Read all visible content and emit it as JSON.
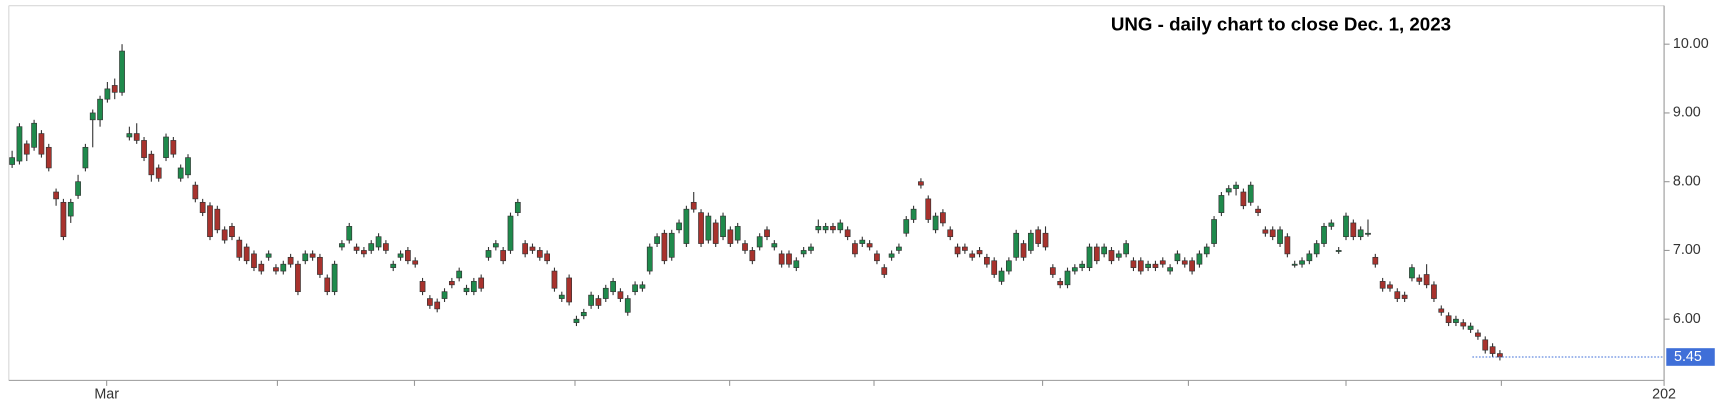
{
  "chart_data": {
    "type": "candlestick",
    "title": "UNG - daily chart to close Dec. 1, 2023",
    "ylim": [
      5.11,
      10.56
    ],
    "yticks": [
      {
        "value": 6,
        "label": "6.00"
      },
      {
        "value": 7,
        "label": "7.00"
      },
      {
        "value": 8,
        "label": "8.00"
      },
      {
        "value": 9,
        "label": "9.00"
      },
      {
        "value": 10,
        "label": "10.00"
      }
    ],
    "xlim": [
      -0.45,
      225.4
    ],
    "xticks": [
      {
        "value": 12.9,
        "label": "Mar"
      },
      {
        "value": 225.4,
        "label": "202"
      }
    ],
    "xminor": [
      36.2,
      54.9,
      76.8,
      97.9,
      117.6,
      140.6,
      160.5,
      182.0,
      203.2
    ],
    "up_color": "#1f8a4c",
    "down_color": "#a8322d",
    "last_label": "5.45",
    "last_color": "#3f6fd8",
    "ohlc": [
      [
        8.25,
        8.45,
        8.2,
        8.35
      ],
      [
        8.3,
        8.85,
        8.25,
        8.8
      ],
      [
        8.55,
        8.6,
        8.3,
        8.4
      ],
      [
        8.5,
        8.9,
        8.45,
        8.85
      ],
      [
        8.7,
        8.75,
        8.35,
        8.4
      ],
      [
        8.5,
        8.55,
        8.15,
        8.2
      ],
      [
        7.85,
        7.9,
        7.65,
        7.75
      ],
      [
        7.7,
        7.75,
        7.15,
        7.2
      ],
      [
        7.5,
        7.75,
        7.4,
        7.7
      ],
      [
        7.8,
        8.1,
        7.75,
        8.0
      ],
      [
        8.2,
        8.55,
        8.15,
        8.5
      ],
      [
        8.9,
        9.05,
        8.5,
        9.0
      ],
      [
        8.9,
        9.25,
        8.8,
        9.2
      ],
      [
        9.2,
        9.45,
        9.15,
        9.35
      ],
      [
        9.4,
        9.5,
        9.2,
        9.3
      ],
      [
        9.3,
        10.0,
        9.25,
        9.9
      ],
      [
        8.65,
        8.8,
        8.6,
        8.7
      ],
      [
        8.7,
        8.85,
        8.55,
        8.6
      ],
      [
        8.6,
        8.65,
        8.3,
        8.35
      ],
      [
        8.4,
        8.45,
        8.0,
        8.1
      ],
      [
        8.2,
        8.25,
        8.0,
        8.05
      ],
      [
        8.35,
        8.7,
        8.3,
        8.65
      ],
      [
        8.6,
        8.65,
        8.35,
        8.4
      ],
      [
        8.05,
        8.25,
        8.0,
        8.2
      ],
      [
        8.1,
        8.4,
        8.05,
        8.35
      ],
      [
        7.95,
        8.0,
        7.7,
        7.75
      ],
      [
        7.7,
        7.75,
        7.5,
        7.55
      ],
      [
        7.65,
        7.7,
        7.15,
        7.2
      ],
      [
        7.6,
        7.65,
        7.25,
        7.3
      ],
      [
        7.3,
        7.35,
        7.1,
        7.15
      ],
      [
        7.35,
        7.4,
        7.15,
        7.2
      ],
      [
        7.15,
        7.2,
        6.85,
        6.9
      ],
      [
        7.05,
        7.1,
        6.8,
        6.85
      ],
      [
        6.95,
        7.0,
        6.7,
        6.75
      ],
      [
        6.8,
        6.85,
        6.65,
        6.7
      ],
      [
        6.9,
        7.0,
        6.85,
        6.95
      ],
      [
        6.75,
        6.8,
        6.65,
        6.7
      ],
      [
        6.7,
        6.85,
        6.65,
        6.8
      ],
      [
        6.9,
        6.95,
        6.75,
        6.8
      ],
      [
        6.8,
        6.85,
        6.35,
        6.4
      ],
      [
        6.85,
        7.0,
        6.8,
        6.95
      ],
      [
        6.95,
        7.0,
        6.85,
        6.9
      ],
      [
        6.9,
        6.95,
        6.6,
        6.65
      ],
      [
        6.6,
        6.65,
        6.35,
        6.4
      ],
      [
        6.4,
        6.85,
        6.35,
        6.8
      ],
      [
        7.05,
        7.15,
        7.0,
        7.1
      ],
      [
        7.15,
        7.4,
        7.1,
        7.35
      ],
      [
        7.05,
        7.1,
        6.95,
        7.0
      ],
      [
        7.0,
        7.05,
        6.9,
        6.95
      ],
      [
        7.0,
        7.15,
        6.95,
        7.1
      ],
      [
        7.05,
        7.25,
        7.0,
        7.2
      ],
      [
        7.1,
        7.15,
        6.95,
        7.0
      ],
      [
        6.75,
        6.85,
        6.7,
        6.8
      ],
      [
        6.9,
        7.0,
        6.85,
        6.95
      ],
      [
        7.0,
        7.05,
        6.8,
        6.85
      ],
      [
        6.85,
        6.9,
        6.75,
        6.8
      ],
      [
        6.55,
        6.6,
        6.35,
        6.4
      ],
      [
        6.3,
        6.35,
        6.15,
        6.2
      ],
      [
        6.25,
        6.3,
        6.1,
        6.15
      ],
      [
        6.3,
        6.45,
        6.25,
        6.4
      ],
      [
        6.55,
        6.6,
        6.45,
        6.5
      ],
      [
        6.6,
        6.75,
        6.55,
        6.7
      ],
      [
        6.4,
        6.5,
        6.35,
        6.45
      ],
      [
        6.4,
        6.6,
        6.35,
        6.55
      ],
      [
        6.6,
        6.65,
        6.4,
        6.45
      ],
      [
        6.9,
        7.05,
        6.85,
        7.0
      ],
      [
        7.05,
        7.15,
        7.0,
        7.1
      ],
      [
        7.0,
        7.05,
        6.8,
        6.85
      ],
      [
        7.0,
        7.55,
        6.95,
        7.5
      ],
      [
        7.55,
        7.75,
        7.5,
        7.7
      ],
      [
        7.1,
        7.15,
        6.9,
        6.95
      ],
      [
        7.05,
        7.1,
        6.95,
        7.0
      ],
      [
        7.0,
        7.05,
        6.85,
        6.9
      ],
      [
        6.95,
        7.0,
        6.8,
        6.85
      ],
      [
        6.7,
        6.75,
        6.4,
        6.45
      ],
      [
        6.3,
        6.4,
        6.25,
        6.35
      ],
      [
        6.6,
        6.65,
        6.2,
        6.25
      ],
      [
        5.95,
        6.05,
        5.9,
        6.0
      ],
      [
        6.05,
        6.15,
        6.0,
        6.1
      ],
      [
        6.2,
        6.4,
        6.15,
        6.35
      ],
      [
        6.3,
        6.35,
        6.15,
        6.2
      ],
      [
        6.3,
        6.5,
        6.25,
        6.45
      ],
      [
        6.4,
        6.6,
        6.35,
        6.55
      ],
      [
        6.4,
        6.45,
        6.25,
        6.3
      ],
      [
        6.1,
        6.35,
        6.05,
        6.3
      ],
      [
        6.4,
        6.55,
        6.35,
        6.5
      ],
      [
        6.45,
        6.55,
        6.4,
        6.5
      ],
      [
        6.7,
        7.1,
        6.65,
        7.05
      ],
      [
        7.1,
        7.25,
        7.05,
        7.2
      ],
      [
        7.25,
        7.3,
        6.8,
        6.85
      ],
      [
        6.9,
        7.3,
        6.85,
        7.25
      ],
      [
        7.3,
        7.45,
        7.25,
        7.4
      ],
      [
        7.1,
        7.65,
        7.05,
        7.6
      ],
      [
        7.7,
        7.85,
        7.55,
        7.6
      ],
      [
        7.55,
        7.6,
        7.05,
        7.1
      ],
      [
        7.15,
        7.55,
        7.1,
        7.5
      ],
      [
        7.4,
        7.45,
        7.05,
        7.1
      ],
      [
        7.2,
        7.55,
        7.15,
        7.5
      ],
      [
        7.3,
        7.35,
        7.05,
        7.1
      ],
      [
        7.15,
        7.4,
        7.1,
        7.35
      ],
      [
        7.1,
        7.15,
        6.95,
        7.0
      ],
      [
        7.0,
        7.05,
        6.8,
        6.85
      ],
      [
        7.05,
        7.25,
        7.0,
        7.2
      ],
      [
        7.3,
        7.35,
        7.15,
        7.2
      ],
      [
        7.05,
        7.15,
        7.0,
        7.1
      ],
      [
        6.95,
        7.0,
        6.75,
        6.8
      ],
      [
        6.95,
        7.0,
        6.75,
        6.8
      ],
      [
        6.75,
        6.9,
        6.7,
        6.85
      ],
      [
        6.95,
        7.05,
        6.9,
        7.0
      ],
      [
        7.0,
        7.1,
        6.95,
        7.05
      ],
      [
        7.3,
        7.45,
        7.25,
        7.35
      ],
      [
        7.3,
        7.4,
        7.25,
        7.35
      ],
      [
        7.35,
        7.4,
        7.25,
        7.3
      ],
      [
        7.3,
        7.45,
        7.25,
        7.4
      ],
      [
        7.3,
        7.35,
        7.15,
        7.2
      ],
      [
        7.1,
        7.15,
        6.9,
        6.95
      ],
      [
        7.1,
        7.2,
        7.05,
        7.15
      ],
      [
        7.1,
        7.15,
        7.0,
        7.05
      ],
      [
        6.95,
        7.0,
        6.8,
        6.85
      ],
      [
        6.75,
        6.8,
        6.6,
        6.65
      ],
      [
        6.9,
        7.0,
        6.85,
        6.95
      ],
      [
        7.0,
        7.1,
        6.95,
        7.05
      ],
      [
        7.25,
        7.5,
        7.2,
        7.45
      ],
      [
        7.45,
        7.65,
        7.4,
        7.6
      ],
      [
        8.0,
        8.05,
        7.9,
        7.95
      ],
      [
        7.75,
        7.8,
        7.4,
        7.45
      ],
      [
        7.3,
        7.55,
        7.25,
        7.5
      ],
      [
        7.55,
        7.6,
        7.35,
        7.4
      ],
      [
        7.3,
        7.35,
        7.15,
        7.2
      ],
      [
        7.05,
        7.1,
        6.9,
        6.95
      ],
      [
        7.05,
        7.1,
        6.95,
        7.0
      ],
      [
        6.95,
        7.0,
        6.85,
        6.9
      ],
      [
        7.0,
        7.05,
        6.9,
        6.95
      ],
      [
        6.9,
        6.95,
        6.75,
        6.8
      ],
      [
        6.85,
        6.9,
        6.6,
        6.65
      ],
      [
        6.55,
        6.75,
        6.5,
        6.7
      ],
      [
        6.7,
        6.9,
        6.65,
        6.85
      ],
      [
        6.9,
        7.3,
        6.85,
        7.25
      ],
      [
        7.1,
        7.15,
        6.85,
        6.9
      ],
      [
        7.0,
        7.3,
        6.95,
        7.25
      ],
      [
        7.3,
        7.35,
        7.05,
        7.1
      ],
      [
        7.25,
        7.35,
        7.0,
        7.05
      ],
      [
        6.75,
        6.8,
        6.6,
        6.65
      ],
      [
        6.55,
        6.6,
        6.45,
        6.5
      ],
      [
        6.5,
        6.75,
        6.45,
        6.7
      ],
      [
        6.7,
        6.8,
        6.65,
        6.75
      ],
      [
        6.75,
        6.85,
        6.7,
        6.8
      ],
      [
        6.75,
        7.1,
        6.7,
        7.05
      ],
      [
        7.05,
        7.1,
        6.8,
        6.85
      ],
      [
        6.95,
        7.1,
        6.9,
        7.05
      ],
      [
        7.0,
        7.05,
        6.8,
        6.85
      ],
      [
        6.9,
        7.0,
        6.85,
        6.95
      ],
      [
        6.95,
        7.15,
        6.9,
        7.1
      ],
      [
        6.85,
        6.9,
        6.7,
        6.75
      ],
      [
        6.85,
        6.9,
        6.65,
        6.7
      ],
      [
        6.75,
        6.85,
        6.7,
        6.8
      ],
      [
        6.8,
        6.85,
        6.7,
        6.75
      ],
      [
        6.85,
        6.9,
        6.75,
        6.8
      ],
      [
        6.7,
        6.8,
        6.65,
        6.75
      ],
      [
        6.85,
        7.0,
        6.8,
        6.95
      ],
      [
        6.85,
        6.9,
        6.75,
        6.8
      ],
      [
        6.85,
        6.9,
        6.65,
        6.7
      ],
      [
        6.8,
        7.0,
        6.75,
        6.95
      ],
      [
        6.95,
        7.1,
        6.9,
        7.05
      ],
      [
        7.1,
        7.5,
        7.05,
        7.45
      ],
      [
        7.55,
        7.85,
        7.5,
        7.8
      ],
      [
        7.85,
        7.95,
        7.8,
        7.9
      ],
      [
        7.9,
        8.0,
        7.8,
        7.95
      ],
      [
        7.85,
        7.9,
        7.6,
        7.65
      ],
      [
        7.7,
        8.0,
        7.65,
        7.95
      ],
      [
        7.6,
        7.65,
        7.5,
        7.55
      ],
      [
        7.3,
        7.35,
        7.2,
        7.25
      ],
      [
        7.3,
        7.35,
        7.15,
        7.2
      ],
      [
        7.1,
        7.35,
        7.05,
        7.3
      ],
      [
        7.2,
        7.25,
        6.9,
        6.95
      ],
      [
        6.8,
        6.85,
        6.75,
        6.8
      ],
      [
        6.8,
        6.9,
        6.75,
        6.85
      ],
      [
        6.85,
        7.0,
        6.8,
        6.95
      ],
      [
        6.95,
        7.15,
        6.9,
        7.1
      ],
      [
        7.1,
        7.4,
        7.05,
        7.35
      ],
      [
        7.35,
        7.45,
        7.3,
        7.4
      ],
      [
        7.0,
        7.05,
        6.95,
        7.0
      ],
      [
        7.2,
        7.55,
        7.15,
        7.5
      ],
      [
        7.4,
        7.45,
        7.15,
        7.2
      ],
      [
        7.2,
        7.35,
        7.15,
        7.3
      ],
      [
        7.25,
        7.45,
        7.2,
        7.25
      ],
      [
        6.9,
        6.95,
        6.75,
        6.8
      ],
      [
        6.55,
        6.6,
        6.4,
        6.45
      ],
      [
        6.5,
        6.55,
        6.4,
        6.45
      ],
      [
        6.4,
        6.45,
        6.25,
        6.3
      ],
      [
        6.35,
        6.4,
        6.25,
        6.3
      ],
      [
        6.6,
        6.8,
        6.55,
        6.75
      ],
      [
        6.6,
        6.65,
        6.5,
        6.55
      ],
      [
        6.65,
        6.8,
        6.45,
        6.5
      ],
      [
        6.5,
        6.55,
        6.25,
        6.3
      ],
      [
        6.15,
        6.2,
        6.05,
        6.1
      ],
      [
        6.05,
        6.1,
        5.9,
        5.95
      ],
      [
        5.95,
        6.05,
        5.9,
        6.0
      ],
      [
        5.95,
        6.0,
        5.85,
        5.9
      ],
      [
        5.85,
        5.95,
        5.8,
        5.9
      ],
      [
        5.8,
        5.85,
        5.7,
        5.75
      ],
      [
        5.7,
        5.75,
        5.5,
        5.55
      ],
      [
        5.6,
        5.65,
        5.45,
        5.5
      ],
      [
        5.5,
        5.55,
        5.4,
        5.45
      ]
    ]
  }
}
